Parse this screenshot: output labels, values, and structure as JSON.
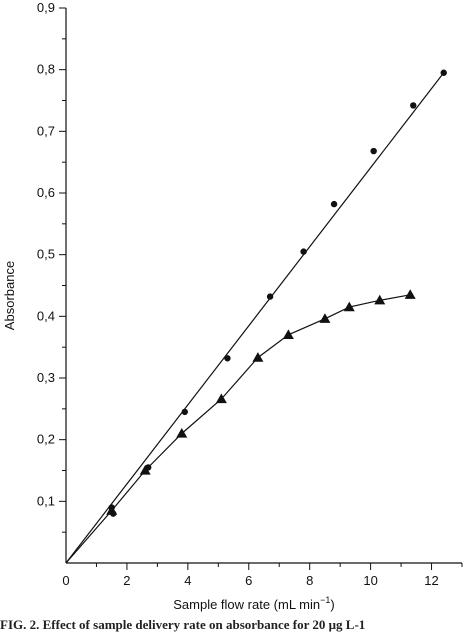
{
  "chart_data": {
    "type": "line",
    "xlabel": "Sample flow rate (mL min",
    "xlabel_superscript": "−1",
    "xlabel_suffix": ")",
    "ylabel": "Absorbance",
    "xlim": [
      0,
      13
    ],
    "ylim": [
      0,
      0.9
    ],
    "xticks": [
      0,
      2,
      4,
      6,
      8,
      10,
      12
    ],
    "xtick_labels": [
      "0",
      "2",
      "4",
      "6",
      "8",
      "10",
      "12"
    ],
    "yticks": [
      0.1,
      0.2,
      0.3,
      0.4,
      0.5,
      0.6,
      0.7,
      0.8,
      0.9
    ],
    "ytick_labels": [
      "0,1",
      "0,2",
      "0,3",
      "0,4",
      "0,5",
      "0,6",
      "0,7",
      "0,8",
      "0,9"
    ],
    "grid": false,
    "legend": "none",
    "series": [
      {
        "marker": "circle",
        "color": "#111111",
        "points": [
          [
            1.5,
            0.09
          ],
          [
            1.55,
            0.08
          ],
          [
            2.7,
            0.155
          ],
          [
            3.9,
            0.245
          ],
          [
            5.3,
            0.332
          ],
          [
            6.7,
            0.432
          ],
          [
            7.8,
            0.505
          ],
          [
            8.8,
            0.582
          ],
          [
            10.1,
            0.668
          ],
          [
            11.4,
            0.742
          ],
          [
            12.4,
            0.795
          ]
        ],
        "fit_line": [
          [
            0,
            0
          ],
          [
            12.4,
            0.795
          ]
        ]
      },
      {
        "marker": "triangle",
        "color": "#111111",
        "points": [
          [
            1.5,
            0.085
          ],
          [
            2.6,
            0.15
          ],
          [
            3.8,
            0.21
          ],
          [
            5.1,
            0.266
          ],
          [
            6.3,
            0.333
          ],
          [
            7.3,
            0.37
          ],
          [
            8.5,
            0.396
          ],
          [
            9.3,
            0.415
          ],
          [
            10.3,
            0.426
          ],
          [
            11.3,
            0.435
          ]
        ],
        "curve": [
          [
            0,
            0
          ],
          [
            1.5,
            0.085
          ],
          [
            2.6,
            0.15
          ],
          [
            3.8,
            0.21
          ],
          [
            5.1,
            0.266
          ],
          [
            6.3,
            0.333
          ],
          [
            7.3,
            0.37
          ],
          [
            8.5,
            0.396
          ],
          [
            9.3,
            0.415
          ],
          [
            10.3,
            0.426
          ],
          [
            11.3,
            0.435
          ]
        ]
      }
    ]
  },
  "caption": "FIG. 2. Effect of sample delivery rate on absorbance for 20 μg L-1"
}
